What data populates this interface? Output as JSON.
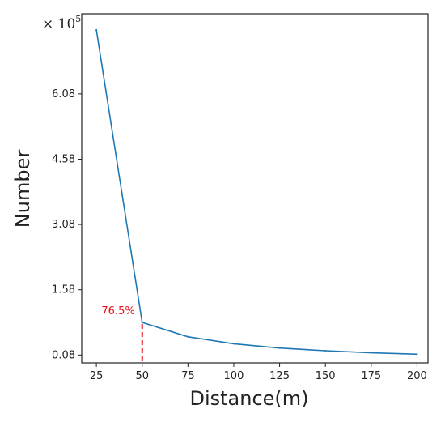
{
  "chart_data": {
    "type": "line",
    "title": "",
    "xlabel": "Distance(m)",
    "ylabel": "Number",
    "y_multiplier_label": "× 10",
    "y_multiplier_exponent": "5",
    "x": [
      25,
      50,
      75,
      100,
      125,
      150,
      175,
      200
    ],
    "series": [
      {
        "values": [
          7.55,
          0.83,
          0.5,
          0.34,
          0.24,
          0.18,
          0.13,
          0.1
        ]
      }
    ],
    "x_ticks": [
      25,
      50,
      75,
      100,
      125,
      150,
      175,
      200
    ],
    "x_tick_labels": [
      "25",
      "50",
      "75",
      "100",
      "125",
      "150",
      "175",
      "200"
    ],
    "y_ticks": [
      0.08,
      1.58,
      3.08,
      4.58,
      6.08
    ],
    "y_tick_labels": [
      "0.08",
      "1.58",
      "3.08",
      "4.58",
      "6.08"
    ],
    "xlim": [
      17,
      206
    ],
    "ylim": [
      -0.1,
      7.92
    ],
    "grid": false,
    "line_color": "#1f77b4",
    "annotation": {
      "text": "76.5%",
      "x": 50,
      "y": 0.83,
      "color": "#e8121b"
    }
  }
}
